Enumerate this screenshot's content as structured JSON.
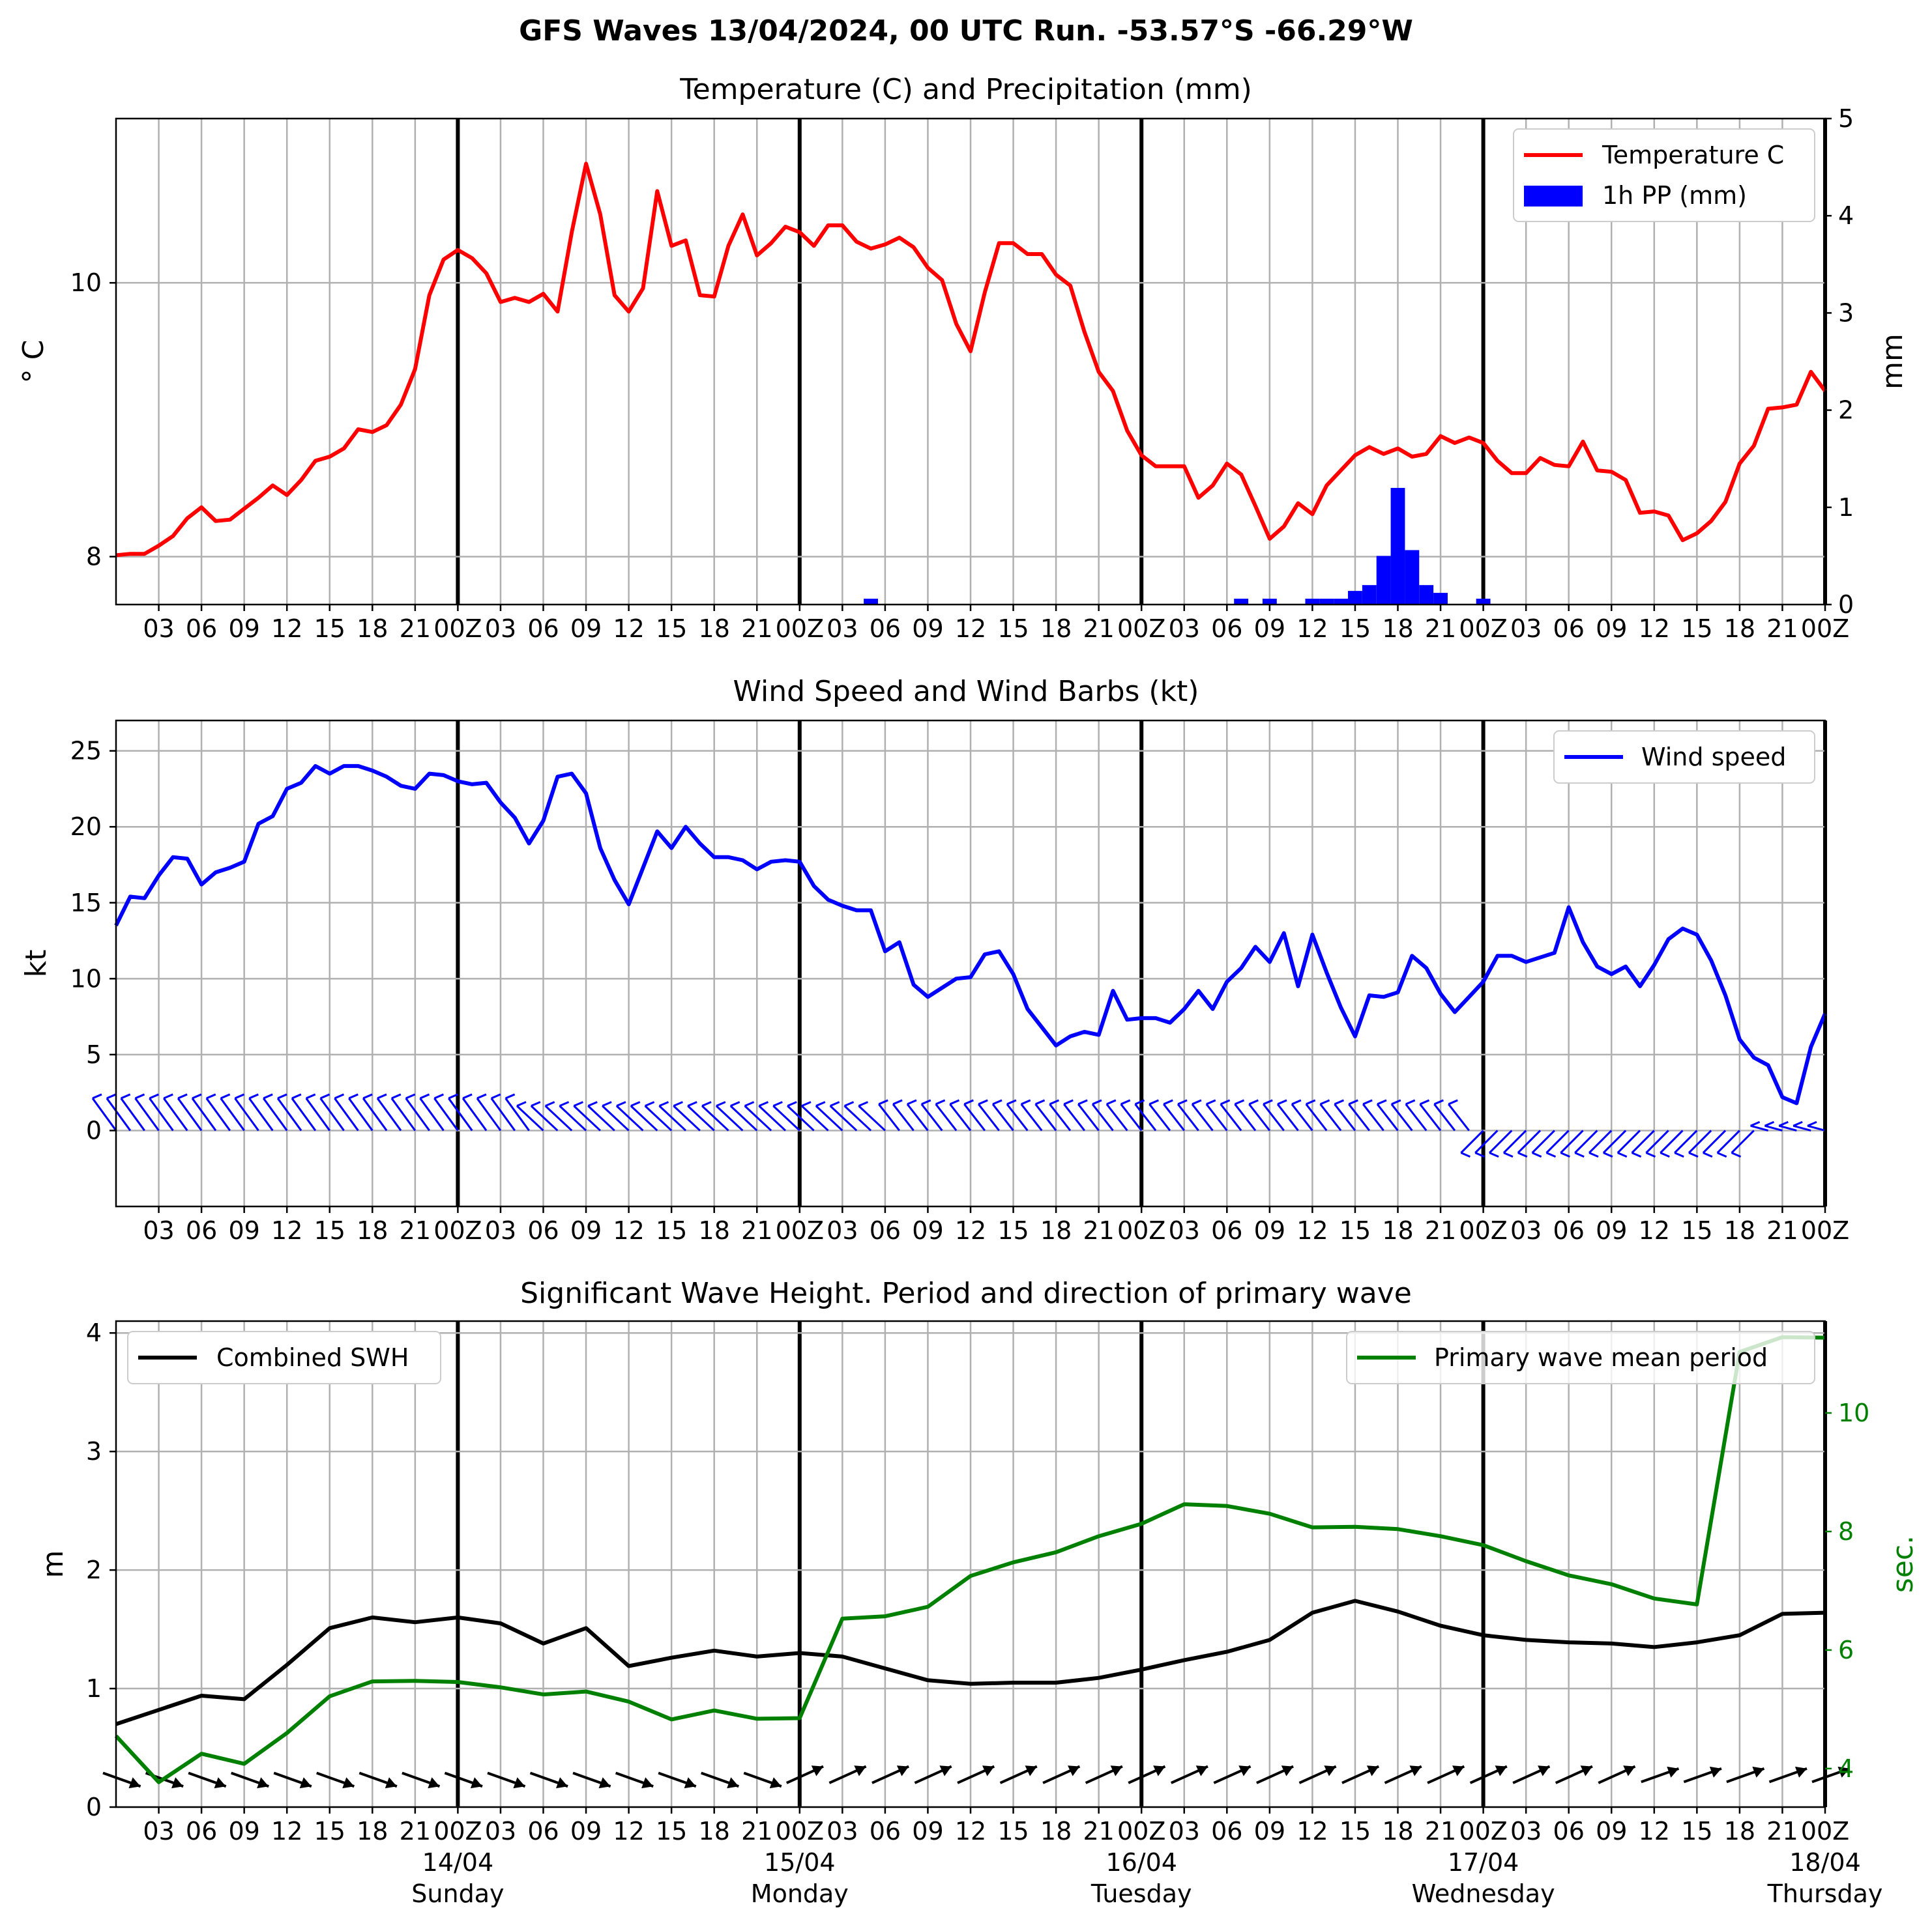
{
  "suptitle": "GFS Waves 13/04/2024, 00 UTC Run. -53.57°S -66.29°W",
  "x_hour_labels": [
    "03",
    "06",
    "09",
    "12",
    "15",
    "18",
    "21",
    "00Z",
    "03",
    "06",
    "09",
    "12",
    "15",
    "18",
    "21",
    "00Z",
    "03",
    "06",
    "09",
    "12",
    "15",
    "18",
    "21",
    "00Z",
    "03",
    "06",
    "09",
    "12",
    "15",
    "18",
    "21",
    "00Z",
    "03",
    "06",
    "09",
    "12",
    "15",
    "18",
    "21",
    "00Z"
  ],
  "x_day_labels": [
    {
      "date": "14/04",
      "day": "Sunday"
    },
    {
      "date": "15/04",
      "day": "Monday"
    },
    {
      "date": "16/04",
      "day": "Tuesday"
    },
    {
      "date": "17/04",
      "day": "Wednesday"
    },
    {
      "date": "18/04",
      "day": "Thursday"
    }
  ],
  "colors": {
    "temperature": "#ff0000",
    "precip": "#0000ff",
    "wind": "#0000ff",
    "swh": "#000000",
    "period": "#008000",
    "grid": "#b0b0b0"
  },
  "chart_data": [
    {
      "type": "line",
      "title": "Temperature (C) and Precipitation (mm)",
      "ylabel": "° C",
      "y2label": "mm",
      "ylim": [
        7.65,
        11.2
      ],
      "y_ticks": [
        "8",
        "10"
      ],
      "y2lim": [
        0,
        5
      ],
      "y2_ticks": [
        "0",
        "1",
        "2",
        "3",
        "4",
        "5"
      ],
      "xlim_hours": [
        0,
        120
      ],
      "legend": [
        "Temperature C",
        "1h PP (mm)"
      ],
      "legend_position": "top-right",
      "grid": true,
      "series": [
        {
          "name": "Temperature C",
          "x_hours": [
            0,
            1,
            2,
            3,
            4,
            5,
            6,
            7,
            8,
            9,
            10,
            11,
            12,
            13,
            14,
            15,
            16,
            17,
            18,
            19,
            20,
            21,
            22,
            23,
            24,
            25,
            26,
            27,
            28,
            29,
            30,
            31,
            32,
            33,
            34,
            35,
            36,
            37,
            38,
            39,
            40,
            41,
            42,
            43,
            44,
            45,
            46,
            47,
            48,
            49,
            50,
            51,
            52,
            53,
            54,
            55,
            56,
            57,
            58,
            59,
            60,
            61,
            62,
            63,
            64,
            65,
            66,
            67,
            68,
            69,
            70,
            71,
            72,
            73,
            74,
            75,
            76,
            77,
            78,
            79,
            80,
            81,
            82,
            83,
            84,
            85,
            86,
            87,
            88,
            89,
            90,
            91,
            92,
            93,
            94,
            95,
            96,
            97,
            98,
            99,
            100,
            101,
            102,
            103,
            104,
            105,
            106,
            107,
            108,
            109,
            110,
            111,
            112,
            113,
            114,
            115,
            116,
            117,
            118,
            119,
            120
          ],
          "values": [
            8.01,
            8.02,
            8.02,
            8.08,
            8.15,
            8.28,
            8.36,
            8.26,
            8.27,
            8.35,
            8.43,
            8.52,
            8.45,
            8.56,
            8.7,
            8.73,
            8.79,
            8.93,
            8.91,
            8.96,
            9.11,
            9.37,
            9.91,
            10.17,
            10.24,
            10.18,
            10.07,
            9.86,
            9.89,
            9.86,
            9.92,
            9.79,
            10.37,
            10.87,
            10.5,
            9.91,
            9.79,
            9.96,
            10.67,
            10.27,
            10.31,
            9.91,
            9.9,
            10.27,
            10.5,
            10.2,
            10.29,
            10.41,
            10.37,
            10.27,
            10.42,
            10.42,
            10.3,
            10.25,
            10.28,
            10.33,
            10.26,
            10.11,
            10.02,
            9.7,
            9.5,
            9.93,
            10.29,
            10.29,
            10.21,
            10.21,
            10.06,
            9.98,
            9.64,
            9.35,
            9.21,
            8.92,
            8.74,
            8.66,
            8.66,
            8.66,
            8.43,
            8.52,
            8.68,
            8.6,
            8.37,
            8.13,
            8.22,
            8.39,
            8.31,
            8.52,
            8.63,
            8.74,
            8.8,
            8.75,
            8.79,
            8.73,
            8.75,
            8.88,
            8.83,
            8.87,
            8.83,
            8.7,
            8.61,
            8.61,
            8.72,
            8.67,
            8.66,
            8.84,
            8.63,
            8.62,
            8.56,
            8.32,
            8.33,
            8.3,
            8.12,
            8.17,
            8.26,
            8.4,
            8.68,
            8.81,
            9.08,
            9.09,
            9.11,
            9.35,
            9.21
          ]
        },
        {
          "name": "1h PP (mm)",
          "kind": "bar",
          "x_hours": [
            53,
            79,
            81,
            84,
            85,
            86,
            87,
            88,
            89,
            90,
            91,
            92,
            93,
            96
          ],
          "values": [
            0.06,
            0.06,
            0.06,
            0.06,
            0.06,
            0.06,
            0.14,
            0.2,
            0.5,
            1.2,
            0.56,
            0.2,
            0.12,
            0.06
          ]
        }
      ]
    },
    {
      "type": "line",
      "title": "Wind Speed and Wind Barbs (kt)",
      "ylabel": "kt",
      "ylim": [
        -5,
        27
      ],
      "y_ticks": [
        "0",
        "5",
        "10",
        "15",
        "20",
        "25"
      ],
      "xlim_hours": [
        0,
        120
      ],
      "legend": [
        "Wind speed"
      ],
      "legend_position": "top-right",
      "grid": true,
      "series": [
        {
          "name": "Wind speed",
          "x_hours": [
            0,
            1,
            2,
            3,
            4,
            5,
            6,
            7,
            8,
            9,
            10,
            11,
            12,
            13,
            14,
            15,
            16,
            17,
            18,
            19,
            20,
            21,
            22,
            23,
            24,
            25,
            26,
            27,
            28,
            29,
            30,
            31,
            32,
            33,
            34,
            35,
            36,
            37,
            38,
            39,
            40,
            41,
            42,
            43,
            44,
            45,
            46,
            47,
            48,
            49,
            50,
            51,
            52,
            53,
            54,
            55,
            56,
            57,
            58,
            59,
            60,
            61,
            62,
            63,
            64,
            65,
            66,
            67,
            68,
            69,
            70,
            71,
            72,
            73,
            74,
            75,
            76,
            77,
            78,
            79,
            80,
            81,
            82,
            83,
            84,
            85,
            86,
            87,
            88,
            89,
            90,
            91,
            92,
            93,
            94,
            95,
            96,
            97,
            98,
            99,
            100,
            101,
            102,
            103,
            104,
            105,
            106,
            107,
            108,
            109,
            110,
            111,
            112,
            113,
            114,
            115,
            116,
            117,
            118,
            119,
            120
          ],
          "values": [
            13.5,
            15.4,
            15.3,
            16.8,
            18.0,
            17.9,
            16.2,
            17.0,
            17.3,
            17.7,
            20.2,
            20.7,
            22.5,
            22.9,
            24.0,
            23.5,
            24.0,
            24.0,
            23.7,
            23.3,
            22.7,
            22.5,
            23.5,
            23.4,
            23.0,
            22.8,
            22.9,
            21.6,
            20.6,
            18.9,
            20.4,
            23.3,
            23.5,
            22.2,
            18.6,
            16.5,
            14.9,
            17.3,
            19.7,
            18.6,
            20.0,
            18.9,
            18.0,
            18.0,
            17.8,
            17.2,
            17.7,
            17.8,
            17.7,
            16.1,
            15.2,
            14.8,
            14.5,
            14.5,
            11.8,
            12.4,
            9.6,
            8.8,
            9.4,
            10.0,
            10.1,
            11.6,
            11.8,
            10.3,
            8.0,
            6.8,
            5.6,
            6.2,
            6.5,
            6.3,
            9.2,
            7.3,
            7.4,
            7.4,
            7.1,
            8.0,
            9.2,
            8.0,
            9.8,
            10.7,
            12.1,
            11.1,
            13.0,
            9.5,
            12.9,
            10.4,
            8.1,
            6.2,
            8.9,
            8.8,
            9.1,
            11.5,
            10.7,
            9.0,
            7.8,
            8.8,
            9.8,
            11.5,
            11.5,
            11.1,
            11.4,
            11.7,
            14.7,
            12.4,
            10.8,
            10.3,
            10.8,
            9.5,
            10.9,
            12.6,
            13.3,
            12.9,
            11.2,
            8.9,
            6.0,
            4.8,
            4.3,
            2.2,
            1.8,
            5.5,
            7.7
          ]
        }
      ],
      "barbs_note": "direction symbols, no numeric labels"
    },
    {
      "type": "line",
      "title": "Significant Wave Height. Period and direction of primary wave",
      "ylabel": "m",
      "y2label": "sec.",
      "ylim": [
        0,
        4.1
      ],
      "y_ticks": [
        "0",
        "1",
        "2",
        "3",
        "4"
      ],
      "y2lim": [
        3.35,
        11.55
      ],
      "y2_ticks": [
        "4",
        "6",
        "8",
        "10"
      ],
      "xlim_hours": [
        0,
        120
      ],
      "legend": [
        "Combined SWH",
        "Primary wave mean period"
      ],
      "grid": true,
      "series": [
        {
          "name": "Combined SWH",
          "x_hours": [
            0,
            3,
            6,
            9,
            12,
            15,
            18,
            21,
            24,
            27,
            30,
            33,
            36,
            39,
            42,
            45,
            48,
            51,
            54,
            57,
            60,
            63,
            66,
            69,
            72,
            75,
            78,
            81,
            84,
            87,
            90,
            93,
            96,
            99,
            102,
            105,
            108,
            111,
            114,
            117,
            120
          ],
          "values": [
            0.7,
            0.82,
            0.94,
            0.91,
            1.2,
            1.51,
            1.6,
            1.56,
            1.6,
            1.55,
            1.38,
            1.51,
            1.19,
            1.26,
            1.32,
            1.27,
            1.3,
            1.27,
            1.17,
            1.07,
            1.04,
            1.05,
            1.05,
            1.09,
            1.16,
            1.24,
            1.31,
            1.41,
            1.64,
            1.74,
            1.65,
            1.53,
            1.45,
            1.41,
            1.39,
            1.38,
            1.35,
            1.39,
            1.45,
            1.63,
            1.64
          ]
        },
        {
          "name": "Primary wave mean period",
          "x_hours": [
            0,
            3,
            6,
            9,
            12,
            15,
            18,
            21,
            24,
            27,
            30,
            33,
            36,
            39,
            42,
            45,
            48,
            51,
            54,
            57,
            60,
            63,
            66,
            69,
            72,
            75,
            78,
            81,
            84,
            87,
            90,
            93,
            96,
            99,
            102,
            105,
            108,
            111,
            114,
            117,
            120
          ],
          "values": [
            4.55,
            3.77,
            4.25,
            4.08,
            4.6,
            5.22,
            5.47,
            5.48,
            5.46,
            5.37,
            5.25,
            5.3,
            5.13,
            4.83,
            4.98,
            4.84,
            4.85,
            6.53,
            6.57,
            6.73,
            7.25,
            7.48,
            7.65,
            7.92,
            8.13,
            8.46,
            8.43,
            8.3,
            8.07,
            8.08,
            8.04,
            7.92,
            7.77,
            7.5,
            7.26,
            7.11,
            6.87,
            6.77,
            11.03,
            11.28,
            11.27
          ]
        }
      ],
      "arrows_note": "primary wave direction arrows, no numeric labels"
    }
  ]
}
